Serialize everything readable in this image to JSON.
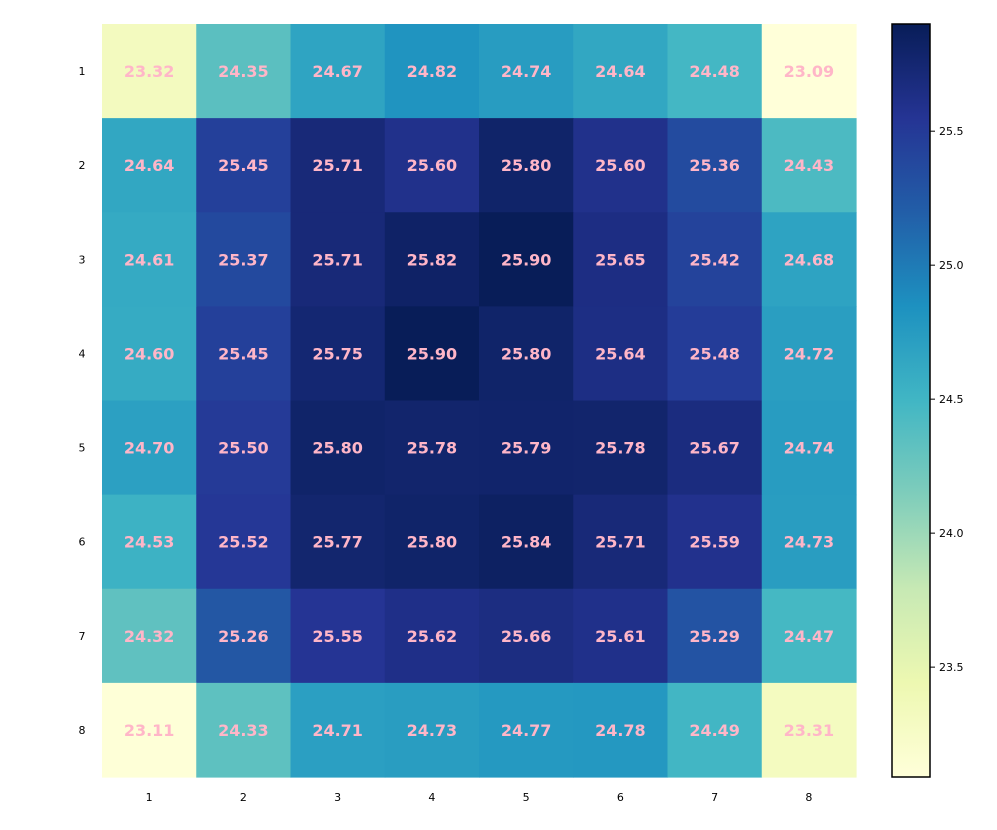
{
  "chart_data": {
    "type": "heatmap",
    "title": "",
    "xlabel": "",
    "ylabel": "",
    "x_categories": [
      "1",
      "2",
      "3",
      "4",
      "5",
      "6",
      "7",
      "8"
    ],
    "y_categories": [
      "1",
      "2",
      "3",
      "4",
      "5",
      "6",
      "7",
      "8"
    ],
    "values": [
      [
        23.32,
        24.35,
        24.67,
        24.82,
        24.74,
        24.64,
        24.48,
        23.09
      ],
      [
        24.64,
        25.45,
        25.71,
        25.6,
        25.8,
        25.6,
        25.36,
        24.43
      ],
      [
        24.61,
        25.37,
        25.71,
        25.82,
        25.9,
        25.65,
        25.42,
        24.68
      ],
      [
        24.6,
        25.45,
        25.75,
        25.9,
        25.8,
        25.64,
        25.48,
        24.72
      ],
      [
        24.7,
        25.5,
        25.8,
        25.78,
        25.79,
        25.78,
        25.67,
        24.74
      ],
      [
        24.53,
        25.52,
        25.77,
        25.8,
        25.84,
        25.71,
        25.59,
        24.73
      ],
      [
        24.32,
        25.26,
        25.55,
        25.62,
        25.66,
        25.61,
        25.29,
        24.47
      ],
      [
        23.11,
        24.33,
        24.71,
        24.73,
        24.77,
        24.78,
        24.49,
        23.31
      ]
    ],
    "value_format": "2 decimals",
    "label_color": "#ffb6c8",
    "colormap": "YlGnBu",
    "color_range": [
      23.09,
      25.9
    ],
    "colorbar": {
      "ticks": [
        23.5,
        24.0,
        24.5,
        25.0,
        25.5
      ],
      "tick_labels": [
        "23.5",
        "24.0",
        "24.5",
        "25.0",
        "25.5"
      ],
      "position": "right"
    },
    "grid": false
  }
}
